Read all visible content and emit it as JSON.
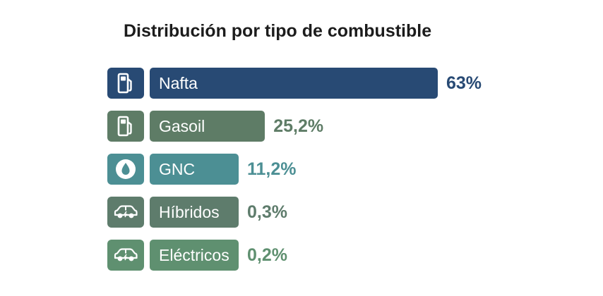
{
  "chart_data": {
    "type": "bar",
    "orientation": "horizontal",
    "title": "Distribución por tipo de combustible",
    "xlabel": "",
    "ylabel": "",
    "xlim": [
      0,
      63
    ],
    "grid": false,
    "categories": [
      "Nafta",
      "Gasoil",
      "GNC",
      "Híbridos",
      "Eléctricos"
    ],
    "values": [
      63,
      25.2,
      11.2,
      0.3,
      0.2
    ],
    "value_labels": [
      "63%",
      "25,2%",
      "11,2%",
      "0,3%",
      "0,2%"
    ],
    "colors": [
      "#284a74",
      "#5e7c66",
      "#4c8f94",
      "#5e7c6c",
      "#5f9070"
    ],
    "label_colors": [
      "#284a74",
      "#5e7c66",
      "#4c8f94",
      "#5e7c6c",
      "#5f9070"
    ],
    "icons": [
      "fuel-pump-icon",
      "fuel-pump-icon",
      "gas-drop-icon",
      "hybrid-car-icon",
      "electric-car-icon"
    ]
  }
}
